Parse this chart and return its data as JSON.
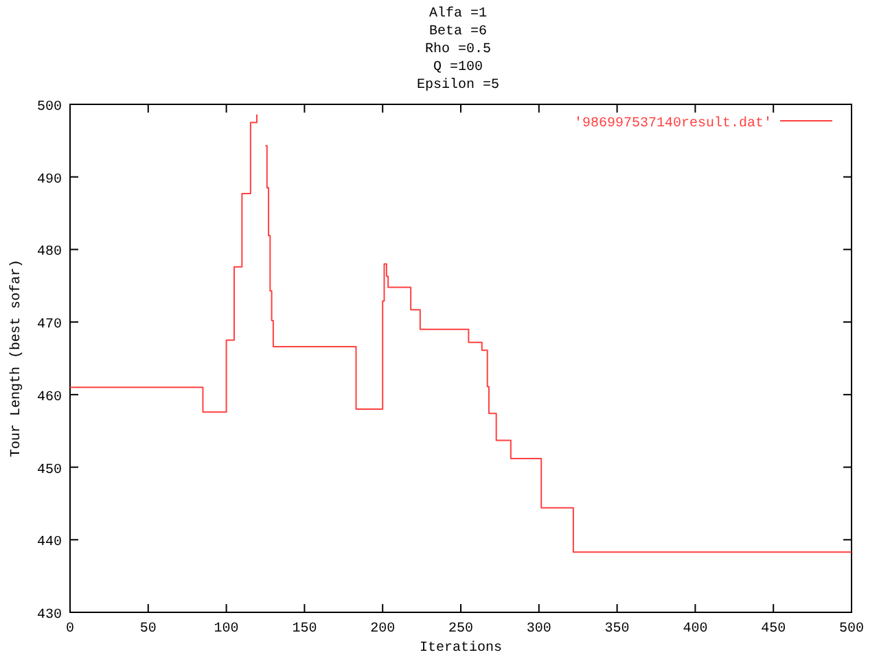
{
  "chart_data": {
    "type": "step",
    "title": "Alfa =1\nBeta =6\nRho =0.5\nQ =100\nEpsilon =5",
    "xlabel": "Iterations",
    "ylabel": "Tour Length (best sofar)",
    "xlim": [
      0,
      500
    ],
    "xticks": [
      0,
      50,
      100,
      150,
      200,
      250,
      300,
      350,
      400,
      450,
      500
    ],
    "ylim": [
      430,
      500
    ],
    "yticks": [
      430,
      440,
      450,
      460,
      470,
      480,
      490,
      500
    ],
    "grid": false,
    "legend": "top right",
    "series": [
      {
        "name": "'986997537140result.dat'",
        "color": "#ff4040",
        "x": [
          0,
          85,
          100,
          105,
          110,
          115.5,
          119.5,
          120.5,
          125,
          126,
          127,
          128,
          129,
          130,
          183,
          200,
          201,
          202.5,
          203.5,
          218,
          224,
          255,
          263.5,
          267,
          268,
          272.7,
          282,
          301.5,
          322,
          500
        ],
        "values": [
          461.0,
          457.6,
          467.5,
          477.6,
          487.7,
          497.5,
          498.6,
          null,
          494.3,
          488.5,
          481.9,
          474.3,
          470.2,
          466.6,
          458.0,
          472.9,
          478.0,
          476.3,
          474.8,
          471.7,
          469.0,
          467.2,
          466.1,
          461.1,
          457.4,
          453.7,
          451.2,
          444.4,
          438.3,
          438.3
        ]
      }
    ]
  }
}
